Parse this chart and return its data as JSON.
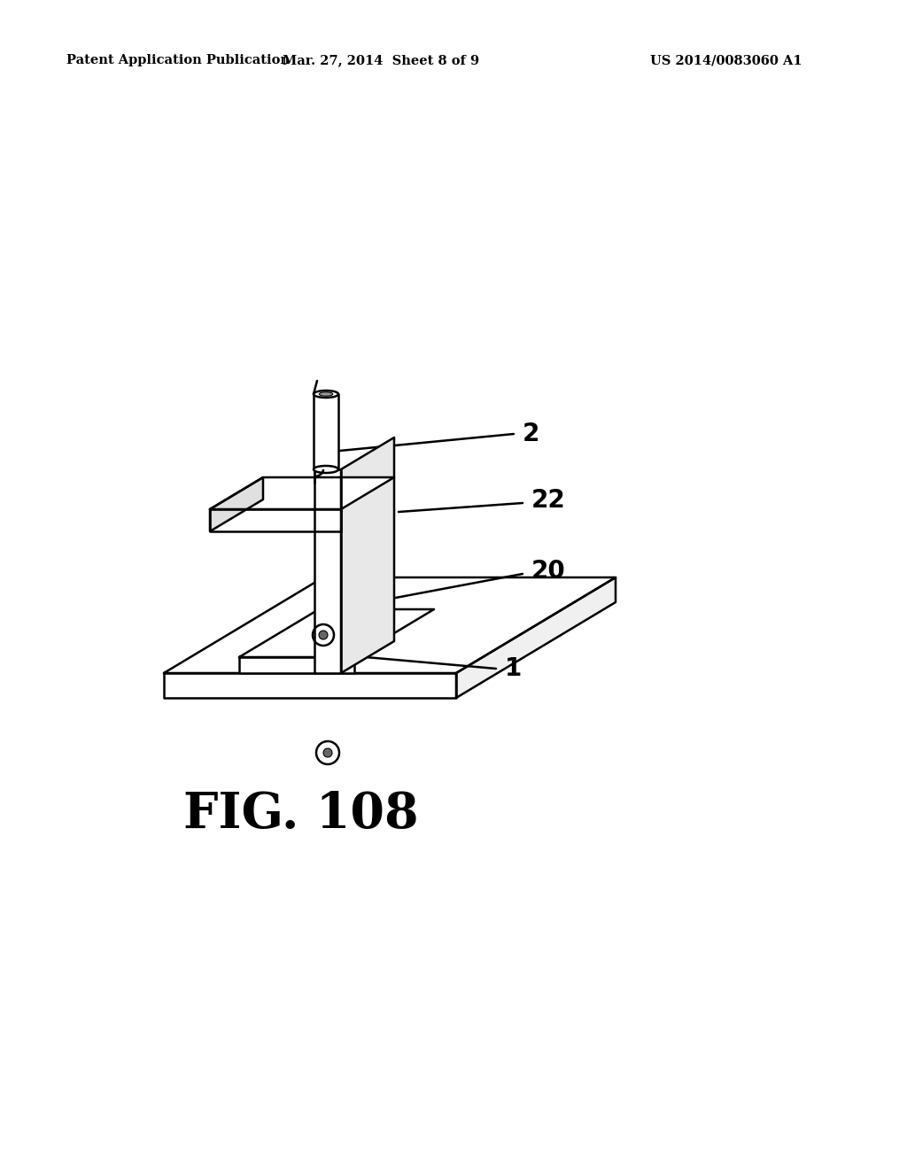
{
  "background_color": "#ffffff",
  "header_left": "Patent Application Publication",
  "header_center": "Mar. 27, 2014  Sheet 8 of 9",
  "header_right": "US 2014/0083060 A1",
  "header_fontsize": 10.5,
  "figure_label": "FIG. 108",
  "figure_label_fontsize": 40,
  "line_color": "#000000",
  "line_width": 1.8,
  "label_fontsize": 20
}
